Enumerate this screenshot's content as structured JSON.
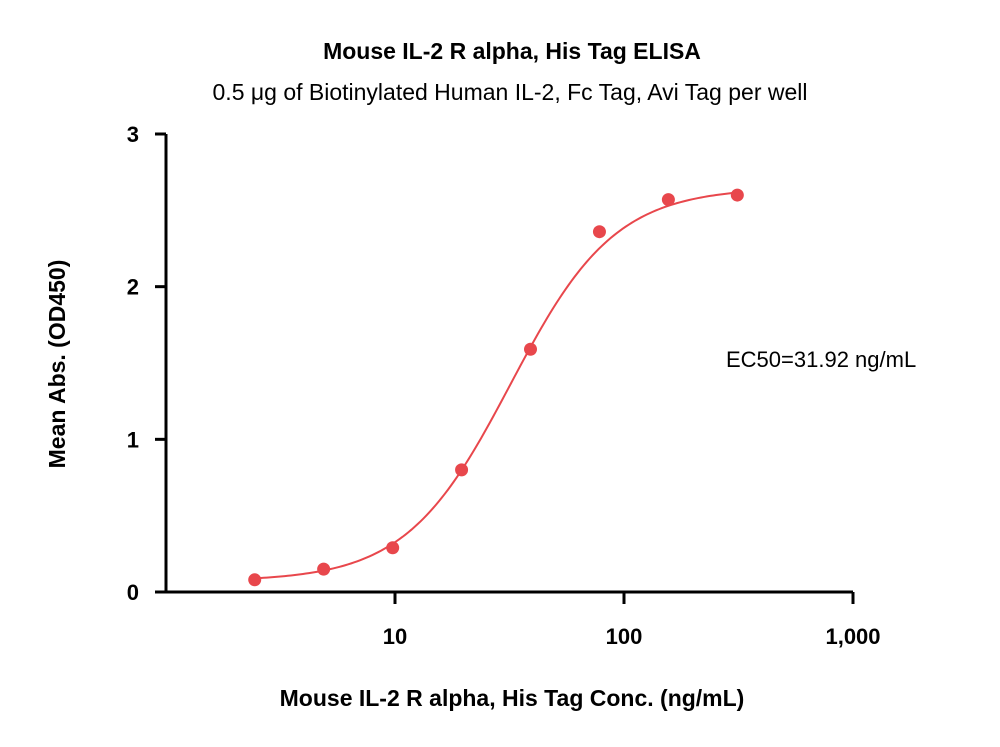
{
  "chart_data": {
    "type": "scatter",
    "title": "Mouse IL-2 R alpha, His Tag ELISA",
    "subtitle": "0.5 μg of Biotinylated Human IL-2, Fc Tag, Avi Tag per well",
    "xlabel": "Mouse IL-2 R alpha, His Tag Conc. (ng/mL)",
    "ylabel": "Mean Abs. (OD450)",
    "x_scale": "log",
    "xlim": [
      1,
      1000
    ],
    "ylim": [
      0,
      3
    ],
    "x_ticks": [
      10,
      100,
      1000
    ],
    "x_tick_labels": [
      "10",
      "100",
      "1,000"
    ],
    "y_ticks": [
      0,
      1,
      2,
      3
    ],
    "y_tick_labels": [
      "0",
      "1",
      "2",
      "3"
    ],
    "grid": false,
    "color": "#e8474c",
    "series": [
      {
        "x": [
          2.44,
          4.88,
          9.77,
          19.53,
          39.06,
          78.13,
          156.25,
          312.5
        ],
        "y": [
          0.08,
          0.15,
          0.29,
          0.8,
          1.59,
          2.36,
          2.57,
          2.6
        ]
      }
    ],
    "fit_curve": {
      "model": "4PL",
      "bottom": 0.07,
      "top": 2.65,
      "ec50": 31.92,
      "hill": 1.9
    },
    "annotations": [
      {
        "text": "EC50=31.92 ng/mL"
      }
    ]
  }
}
